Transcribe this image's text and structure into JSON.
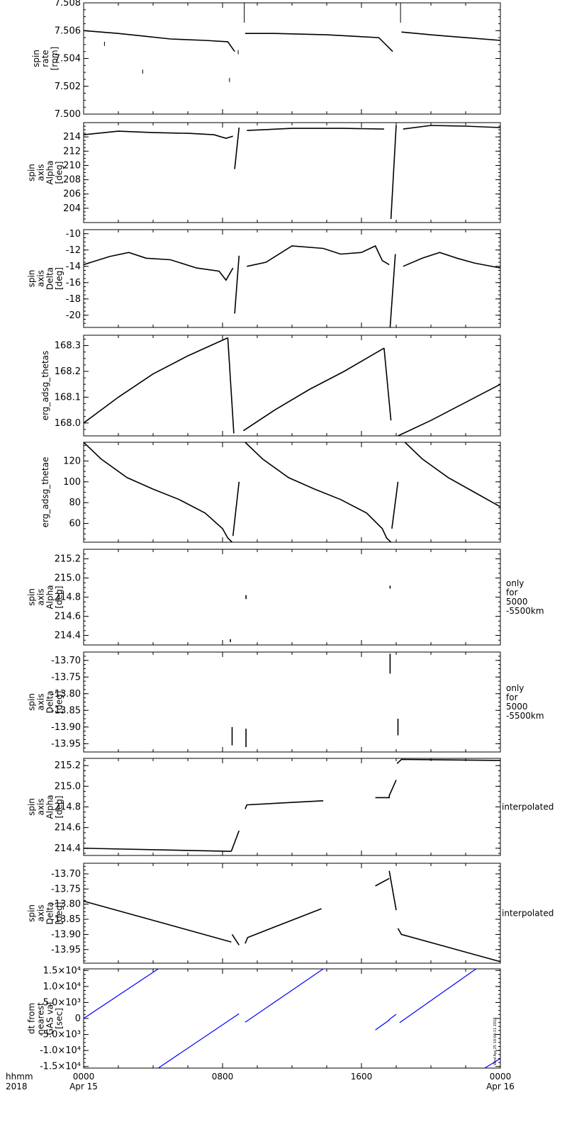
{
  "chart_data": [
    {
      "type": "scatter",
      "ylabel": [
        "spin",
        "rate",
        "[rpm]"
      ],
      "side_label": [],
      "ylim": [
        7.5,
        7.508
      ],
      "yticks": [
        7.5,
        7.502,
        7.504,
        7.506,
        7.508
      ],
      "ytick_labels": [
        "7.500",
        "7.502",
        "7.504",
        "7.506",
        "7.508"
      ],
      "color": "#000000",
      "segments": [
        [
          [
            0,
            7.506
          ],
          [
            2,
            7.5058
          ],
          [
            3.5,
            7.5056
          ],
          [
            5,
            7.5054
          ],
          [
            7,
            7.5053
          ],
          [
            8.3,
            7.5052
          ],
          [
            8.7,
            7.5045
          ]
        ],
        [
          [
            9.3,
            7.5058
          ],
          [
            11,
            7.5058
          ],
          [
            14,
            7.5057
          ],
          [
            17,
            7.5055
          ],
          [
            17.8,
            7.5045
          ]
        ],
        [
          [
            18.3,
            7.5059
          ],
          [
            20,
            7.5057
          ],
          [
            22,
            7.5055
          ],
          [
            24,
            7.5053
          ]
        ]
      ],
      "spikes": [
        [
          1.2,
          7.5049
        ],
        [
          3.4,
          7.5029
        ],
        [
          8.4,
          7.5023
        ],
        [
          8.9,
          7.5043
        ],
        [
          9.25,
          7.508
        ],
        [
          18.25,
          7.508
        ]
      ]
    },
    {
      "type": "scatter",
      "ylabel": [
        "spin",
        "axis",
        "Alpha",
        "[deg]"
      ],
      "side_label": [],
      "ylim": [
        202,
        216
      ],
      "yticks": [
        204,
        206,
        208,
        210,
        212,
        214
      ],
      "ytick_labels": [
        "204",
        "206",
        "208",
        "210",
        "212",
        "214"
      ],
      "color": "#000000",
      "segments": [
        [
          [
            0,
            214.3
          ],
          [
            2,
            214.8
          ],
          [
            4,
            214.6
          ],
          [
            6,
            214.5
          ],
          [
            7.5,
            214.3
          ],
          [
            8.2,
            213.8
          ],
          [
            8.6,
            214.1
          ]
        ],
        [
          [
            8.7,
            209.5
          ],
          [
            8.95,
            215.3
          ]
        ],
        [
          [
            9.4,
            214.9
          ],
          [
            12,
            215.2
          ],
          [
            15,
            215.2
          ],
          [
            17.3,
            215.1
          ]
        ],
        [
          [
            17.7,
            202.5
          ],
          [
            18.0,
            215.6
          ]
        ],
        [
          [
            18.4,
            215.1
          ],
          [
            20,
            215.6
          ],
          [
            22,
            215.5
          ],
          [
            24,
            215.3
          ]
        ]
      ],
      "spikes": []
    },
    {
      "type": "scatter",
      "ylabel": [
        "spin",
        "axis",
        "Delta",
        "[deg]"
      ],
      "side_label": [],
      "ylim": [
        -21.5,
        -9.5
      ],
      "yticks": [
        -20,
        -18,
        -16,
        -14,
        -12,
        -10
      ],
      "ytick_labels": [
        "-20",
        "-18",
        "-16",
        "-14",
        "-12",
        "-10"
      ],
      "color": "#000000",
      "segments": [
        [
          [
            0,
            -13.8
          ],
          [
            1.5,
            -12.8
          ],
          [
            2.6,
            -12.3
          ],
          [
            3.6,
            -13.0
          ],
          [
            5,
            -13.2
          ],
          [
            6.5,
            -14.2
          ],
          [
            7.8,
            -14.6
          ],
          [
            8.2,
            -15.7
          ],
          [
            8.6,
            -14.2
          ]
        ],
        [
          [
            8.7,
            -19.8
          ],
          [
            8.95,
            -12.7
          ]
        ],
        [
          [
            9.4,
            -14.0
          ],
          [
            10.5,
            -13.5
          ],
          [
            12,
            -11.5
          ],
          [
            13.8,
            -11.8
          ],
          [
            14.8,
            -12.5
          ],
          [
            16,
            -12.3
          ],
          [
            16.8,
            -11.5
          ],
          [
            17.2,
            -13.3
          ],
          [
            17.6,
            -13.8
          ]
        ],
        [
          [
            17.65,
            -21.5
          ],
          [
            17.95,
            -12.5
          ]
        ],
        [
          [
            18.4,
            -14.0
          ],
          [
            19.5,
            -13.0
          ],
          [
            20.5,
            -12.3
          ],
          [
            21.5,
            -13.0
          ],
          [
            22.5,
            -13.6
          ],
          [
            24,
            -14.2
          ]
        ]
      ],
      "spikes": []
    },
    {
      "type": "scatter",
      "ylabel": [
        "erg_adsg_thetas"
      ],
      "side_label": [],
      "ylim": [
        167.95,
        168.34
      ],
      "yticks": [
        168.0,
        168.1,
        168.2,
        168.3
      ],
      "ytick_labels": [
        "168.0",
        "168.1",
        "168.2",
        "168.3"
      ],
      "color": "#000000",
      "segments": [
        [
          [
            0,
            168.0
          ],
          [
            2,
            168.1
          ],
          [
            4,
            168.19
          ],
          [
            6,
            168.26
          ],
          [
            8.3,
            168.33
          ]
        ],
        [
          [
            8.3,
            168.33
          ],
          [
            8.65,
            167.96
          ]
        ],
        [
          [
            9.2,
            167.97
          ],
          [
            11,
            168.05
          ],
          [
            13,
            168.13
          ],
          [
            15,
            168.2
          ],
          [
            17.3,
            168.29
          ]
        ],
        [
          [
            17.3,
            168.29
          ],
          [
            17.7,
            168.01
          ]
        ],
        [
          [
            18.1,
            167.95
          ],
          [
            20,
            168.01
          ],
          [
            22,
            168.08
          ],
          [
            24,
            168.15
          ]
        ]
      ],
      "spikes": []
    },
    {
      "type": "scatter",
      "ylabel": [
        "erg_adsg_thetae"
      ],
      "side_label": [],
      "ylim": [
        42,
        138
      ],
      "yticks": [
        60,
        80,
        100,
        120
      ],
      "ytick_labels": [
        "60",
        "80",
        "100",
        "120"
      ],
      "color": "#000000",
      "segments": [
        [
          [
            0,
            138
          ],
          [
            1,
            122
          ],
          [
            2.5,
            104
          ],
          [
            4,
            93
          ],
          [
            5.5,
            83
          ],
          [
            7,
            70
          ],
          [
            8,
            55
          ],
          [
            8.3,
            46
          ],
          [
            8.55,
            42
          ]
        ],
        [
          [
            8.6,
            48
          ],
          [
            8.95,
            100
          ]
        ],
        [
          [
            9.3,
            138
          ],
          [
            10.3,
            122
          ],
          [
            11.8,
            104
          ],
          [
            13.3,
            93
          ],
          [
            14.8,
            83
          ],
          [
            16.3,
            70
          ],
          [
            17.2,
            55
          ],
          [
            17.45,
            46
          ],
          [
            17.7,
            42
          ]
        ],
        [
          [
            17.75,
            55
          ],
          [
            18.1,
            100
          ]
        ],
        [
          [
            18.5,
            138
          ],
          [
            19.5,
            122
          ],
          [
            21,
            104
          ],
          [
            22.5,
            90
          ],
          [
            24,
            76
          ]
        ]
      ],
      "spikes": []
    },
    {
      "type": "scatter",
      "ylabel": [
        "spin",
        "axis",
        "Alpha",
        "[deg]"
      ],
      "side_label": [
        "only",
        "for",
        "5000",
        "-5500km"
      ],
      "ylim": [
        214.3,
        215.3
      ],
      "yticks": [
        214.4,
        214.6,
        214.8,
        215.0,
        215.2
      ],
      "ytick_labels": [
        "214.4",
        "214.6",
        "214.8",
        "215.0",
        "215.2"
      ],
      "color": "#000000",
      "segments": [
        [
          [
            9.35,
            214.82
          ],
          [
            9.35,
            214.78
          ]
        ],
        [
          [
            17.65,
            214.92
          ],
          [
            17.65,
            214.89
          ]
        ],
        [
          [
            8.45,
            214.36
          ],
          [
            8.45,
            214.33
          ]
        ]
      ],
      "spikes": []
    },
    {
      "type": "scatter",
      "ylabel": [
        "spin",
        "axis",
        "Delta",
        "[deg]"
      ],
      "side_label": [
        "only",
        "for",
        "5000",
        "-5500km"
      ],
      "ylim": [
        -13.975,
        -13.675
      ],
      "yticks": [
        -13.95,
        -13.9,
        -13.85,
        -13.8,
        -13.75,
        -13.7
      ],
      "ytick_labels": [
        "-13.95",
        "-13.90",
        "-13.85",
        "-13.80",
        "-13.75",
        "-13.70"
      ],
      "color": "#000000",
      "segments": [
        [
          [
            8.55,
            -13.9
          ],
          [
            8.55,
            -13.955
          ]
        ],
        [
          [
            9.35,
            -13.905
          ],
          [
            9.35,
            -13.96
          ]
        ],
        [
          [
            17.65,
            -13.68
          ],
          [
            17.65,
            -13.74
          ]
        ],
        [
          [
            18.1,
            -13.875
          ],
          [
            18.1,
            -13.925
          ]
        ]
      ],
      "spikes": []
    },
    {
      "type": "line",
      "ylabel": [
        "spin",
        "axis",
        "Alpha",
        "[deg]"
      ],
      "side_label": [
        "interpolated"
      ],
      "ylim": [
        214.33,
        215.27
      ],
      "yticks": [
        214.4,
        214.6,
        214.8,
        215.0,
        215.2
      ],
      "ytick_labels": [
        "214.4",
        "214.6",
        "214.8",
        "215.0",
        "215.2"
      ],
      "color": "#000000",
      "segments": [
        [
          [
            0,
            214.4
          ],
          [
            8.5,
            214.37
          ]
        ],
        [
          [
            8.5,
            214.37
          ],
          [
            8.95,
            214.57
          ]
        ],
        [
          [
            9.3,
            214.78
          ],
          [
            9.4,
            214.82
          ],
          [
            13.8,
            214.86
          ]
        ],
        [
          [
            16.8,
            214.89
          ],
          [
            17.6,
            214.89
          ],
          [
            17.6,
            214.91
          ],
          [
            18.0,
            215.06
          ]
        ],
        [
          [
            18.05,
            215.22
          ],
          [
            18.3,
            215.26
          ],
          [
            24,
            215.25
          ]
        ]
      ],
      "spikes": []
    },
    {
      "type": "line",
      "ylabel": [
        "spin",
        "axis",
        "Delta",
        "[deg]"
      ],
      "side_label": [
        "interpolated"
      ],
      "ylim": [
        -13.995,
        -13.665
      ],
      "yticks": [
        -13.95,
        -13.9,
        -13.85,
        -13.8,
        -13.75,
        -13.7
      ],
      "ytick_labels": [
        "-13.95",
        "-13.90",
        "-13.85",
        "-13.80",
        "-13.75",
        "-13.70"
      ],
      "color": "#000000",
      "segments": [
        [
          [
            0,
            -13.79
          ],
          [
            8.5,
            -13.925
          ]
        ],
        [
          [
            8.55,
            -13.9
          ],
          [
            8.95,
            -13.935
          ]
        ],
        [
          [
            9.3,
            -13.93
          ],
          [
            9.45,
            -13.91
          ],
          [
            13.7,
            -13.815
          ]
        ],
        [
          [
            16.8,
            -13.74
          ],
          [
            17.6,
            -13.715
          ]
        ],
        [
          [
            17.6,
            -13.69
          ],
          [
            18.0,
            -13.82
          ]
        ],
        [
          [
            18.1,
            -13.88
          ],
          [
            18.3,
            -13.9
          ],
          [
            24,
            -13.99
          ]
        ]
      ],
      "spikes": []
    },
    {
      "type": "line",
      "ylabel": [
        "dt from",
        "nearest",
        "GAS val",
        "[sec]"
      ],
      "side_label": [],
      "ylim": [
        -15500,
        15500
      ],
      "yticks": [
        -15000,
        -10000,
        -5000,
        0,
        5000,
        10000,
        15000
      ],
      "ytick_labels": [
        "-1.5×10⁴",
        "-1.0×10⁴",
        "-5.0×10³",
        "0",
        "5.0×10³",
        "1.0×10⁴",
        "1.5×10⁴"
      ],
      "color": "#0000ff",
      "segments": [
        [
          [
            0,
            0
          ],
          [
            4.3,
            15500
          ]
        ],
        [
          [
            4.3,
            -15500
          ],
          [
            8.95,
            1500
          ]
        ],
        [
          [
            9.3,
            -1200
          ],
          [
            13.8,
            15500
          ]
        ],
        [
          [
            16.8,
            -3600
          ],
          [
            17.6,
            -500
          ],
          [
            17.6,
            -300
          ],
          [
            18.0,
            1300
          ]
        ],
        [
          [
            18.2,
            -1300
          ],
          [
            22.6,
            15500
          ]
        ],
        [
          [
            23.1,
            -15500
          ],
          [
            24,
            -12500
          ]
        ]
      ],
      "spikes": [],
      "stamp": "Wed Apr 25 10:04:11 2018"
    }
  ],
  "x_axis": {
    "xlim": [
      0,
      24
    ],
    "ticks": [
      0,
      8,
      16,
      24
    ],
    "tick_labels": [
      "0000",
      "0800",
      "1600",
      "0000"
    ],
    "tick_sublabels": [
      "Apr 15",
      "",
      "",
      "Apr 16"
    ],
    "row_label": "hhmm",
    "year_label": "2018"
  }
}
